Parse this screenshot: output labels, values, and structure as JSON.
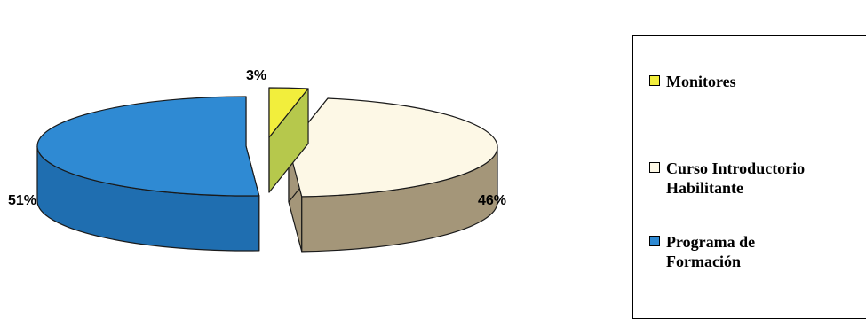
{
  "chart_data": {
    "type": "pie",
    "style": "3d-exploded",
    "categories": [
      "Monitores",
      "Curso Introductorio Habilitante",
      "Programa de Formación"
    ],
    "values": [
      3,
      46,
      51
    ],
    "labels": [
      "3%",
      "46%",
      "51%"
    ],
    "colors": [
      "#f2ee3c",
      "#fdf8e6",
      "#2f8ad3"
    ],
    "side_colors": [
      "#b6c84c",
      "#a49679",
      "#1f6eb0"
    ],
    "legend_position": "right"
  },
  "legend": {
    "items": [
      {
        "lines": [
          "Monitores"
        ],
        "color": "#f2ee3c"
      },
      {
        "lines": [
          "Curso Introductorio",
          "Habilitante"
        ],
        "color": "#fdf8e6"
      },
      {
        "lines": [
          "Programa de",
          "Formación"
        ],
        "color": "#2f8ad3"
      }
    ]
  }
}
